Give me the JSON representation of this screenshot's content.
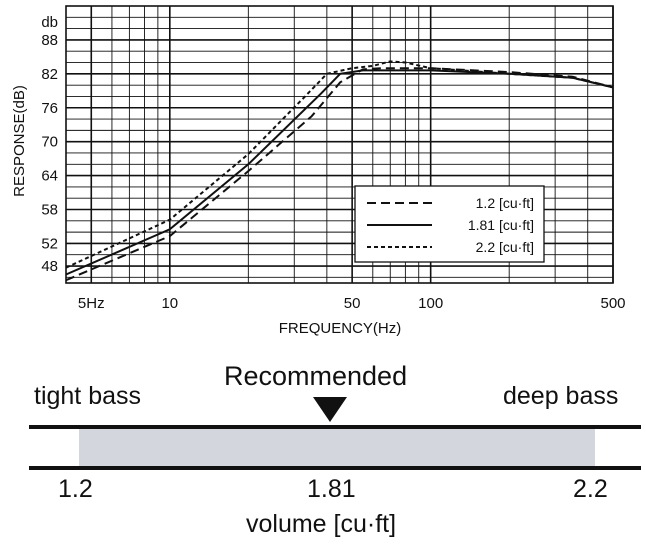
{
  "chart_data": {
    "type": "line",
    "xscale": "log",
    "xlabel": "FREQUENCY(Hz)",
    "ylabel": "RESPONSE(dB)",
    "y_unit_label": "db",
    "xlim": [
      4,
      500
    ],
    "ylim": [
      45,
      94
    ],
    "x_tick_labels": [
      {
        "value": 5,
        "label": "5Hz"
      },
      {
        "value": 10,
        "label": "10"
      },
      {
        "value": 50,
        "label": "50"
      },
      {
        "value": 100,
        "label": "100"
      },
      {
        "value": 500,
        "label": "500"
      }
    ],
    "y_ticks": [
      48,
      52,
      58,
      64,
      70,
      76,
      82,
      88
    ],
    "grid": true,
    "legend_position": "lower-right",
    "series": [
      {
        "name": "1.2 [cu·ft]",
        "dash": "long",
        "x": [
          4,
          10,
          20,
          35,
          45,
          55,
          65,
          75,
          100,
          200,
          350,
          500
        ],
        "y": [
          45.5,
          53.3,
          64.8,
          74.5,
          80.5,
          82.8,
          83.0,
          83.0,
          83.0,
          82.3,
          81.5,
          79.6
        ]
      },
      {
        "name": "1.81 [cu·ft]",
        "dash": "solid",
        "x": [
          4,
          10,
          20,
          38,
          45,
          55,
          70,
          100,
          200,
          350,
          500
        ],
        "y": [
          46.5,
          54.5,
          66.0,
          78.5,
          82.0,
          82.6,
          82.6,
          82.6,
          82.0,
          81.3,
          79.6
        ]
      },
      {
        "name": "2.2 [cu·ft]",
        "dash": "short",
        "x": [
          4,
          10,
          20,
          33,
          40,
          50,
          60,
          70,
          80,
          100,
          200,
          350,
          500
        ],
        "y": [
          47.7,
          56.2,
          67.8,
          78.0,
          82.0,
          83.0,
          83.4,
          84.2,
          84.0,
          83.0,
          82.0,
          81.3,
          79.6
        ]
      }
    ]
  },
  "volume_scale": {
    "recommended_label": "Recommended",
    "left_label": "tight bass",
    "right_label": "deep bass",
    "min_value": 1.2,
    "recommended_value": 1.81,
    "max_value": 2.2,
    "min_label": "1.2",
    "recommended_value_label": "1.81",
    "max_label": "2.2",
    "axis_label": "volume [cu·ft]"
  }
}
